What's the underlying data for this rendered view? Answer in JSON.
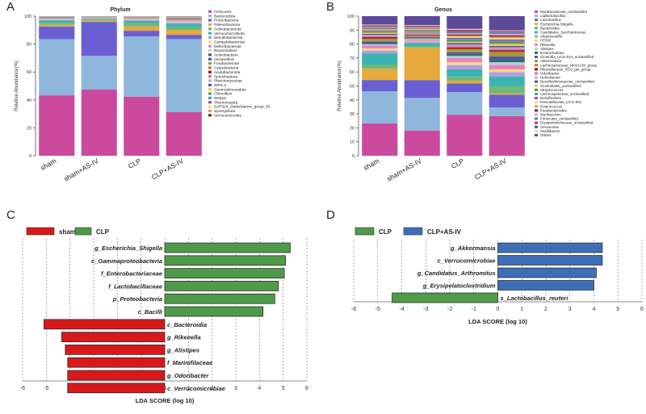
{
  "panels": {
    "a": "A",
    "b": "B",
    "c": "C",
    "d": "D"
  },
  "chart_data": [
    {
      "type": "bar",
      "stacked": true,
      "title": "Phylum",
      "ylabel": "Relative Abundance(%)",
      "xlabel": "",
      "ylim": [
        0,
        100
      ],
      "yticks": [
        0,
        20,
        40,
        60,
        80,
        100
      ],
      "categories": [
        "sham",
        "sham+AS-IV",
        "CLP",
        "CLP+AS-IV"
      ],
      "series": [
        {
          "name": "Firmicutes",
          "color": "#cc4a9e",
          "values": [
            43,
            47,
            42,
            31
          ]
        },
        {
          "name": "Bacteroidota",
          "color": "#8fb6dc",
          "values": [
            40,
            24,
            43,
            52
          ]
        },
        {
          "name": "Proteobacteria",
          "color": "#6a5fd2",
          "values": [
            9,
            24,
            4,
            3
          ]
        },
        {
          "name": "Patescibacteria",
          "color": "#e6a93c",
          "values": [
            1.2,
            0.8,
            3,
            3.5
          ]
        },
        {
          "name": "Actinobacteriota",
          "color": "#6fb97a",
          "values": [
            1.5,
            0.8,
            2.5,
            2
          ]
        },
        {
          "name": "Verrucomicrobiota",
          "color": "#3bb3b0",
          "values": [
            1.5,
            0.5,
            1.5,
            2.5
          ]
        },
        {
          "name": "Desulfobacterota",
          "color": "#b59be0",
          "values": [
            0.6,
            0.4,
            0.8,
            0.8
          ]
        },
        {
          "name": "Campylobacterota",
          "color": "#f0d98a",
          "values": [
            0.4,
            0.2,
            0.5,
            0.6
          ]
        },
        {
          "name": "Deferribacterota",
          "color": "#e884b8",
          "values": [
            0.3,
            0.2,
            0.3,
            0.7
          ]
        },
        {
          "name": "Bacteroidetes",
          "color": "#b7c9e8",
          "values": [
            0.3,
            0.2,
            0.3,
            0.5
          ]
        },
        {
          "name": "Actinobacteria",
          "color": "#2e6f5b",
          "values": [
            0.2,
            0.1,
            0.2,
            0.3
          ]
        },
        {
          "name": "unclassified",
          "color": "#5a4bb5",
          "values": [
            0.2,
            0.1,
            0.2,
            0.3
          ]
        },
        {
          "name": "Fusobacteriota",
          "color": "#8ea43a",
          "values": [
            0.1,
            0.1,
            0.1,
            0.3
          ]
        },
        {
          "name": "Cyanobacteria",
          "color": "#d07b3a",
          "values": [
            0.1,
            0.1,
            0.1,
            0.3
          ]
        },
        {
          "name": "Acidobacteriota",
          "color": "#7a1f1f",
          "values": [
            0.1,
            0.1,
            0.1,
            0.2
          ]
        },
        {
          "name": "Spirochaetota",
          "color": "#e070a0",
          "values": [
            0.1,
            0.05,
            0.1,
            0.2
          ]
        },
        {
          "name": "Planctomycetota",
          "color": "#c6a7c8",
          "values": [
            0.1,
            0.05,
            0.1,
            0.2
          ]
        },
        {
          "name": "WPS-2",
          "color": "#4c5aa8",
          "values": [
            0.1,
            0.05,
            0.1,
            0.2
          ]
        },
        {
          "name": "Gemmatimonadota",
          "color": "#f4c35a",
          "values": [
            0.1,
            0.05,
            0.1,
            0.1
          ]
        },
        {
          "name": "Chloroflexi",
          "color": "#5a9a4a",
          "values": [
            0.1,
            0.05,
            0.1,
            0.1
          ]
        },
        {
          "name": "NKB15",
          "color": "#4aa3a0",
          "values": [
            0.1,
            0.05,
            0.1,
            0.1
          ]
        },
        {
          "name": "Thermotogota",
          "color": "#9c4bb5",
          "values": [
            0.1,
            0.05,
            0.05,
            0.1
          ]
        },
        {
          "name": "SAR324_clade(Marine_group_B)",
          "color": "#efe07a",
          "values": [
            0.05,
            0.05,
            0.05,
            0.1
          ]
        },
        {
          "name": "Synergistota",
          "color": "#d99a6c",
          "values": [
            0.05,
            0.05,
            0.05,
            0.1
          ]
        },
        {
          "name": "Verrucomicrobia",
          "color": "#6b3a1e",
          "values": [
            0.05,
            0.05,
            0.05,
            0.1
          ]
        }
      ]
    },
    {
      "type": "bar",
      "stacked": true,
      "title": "Genus",
      "ylabel": "Relative Abundance(%)",
      "xlabel": "",
      "ylim": [
        0,
        100
      ],
      "yticks": [
        0,
        10,
        20,
        30,
        40,
        50,
        60,
        70,
        80,
        90,
        100
      ],
      "categories": [
        "sham",
        "sham+AS-IV",
        "CLP",
        "CLP+AS-IV"
      ],
      "series": [
        {
          "name": "Muribaculaceae_unclassified",
          "color": "#cc4a9e",
          "values": [
            23,
            17,
            29,
            28
          ]
        },
        {
          "name": "Ligilactobacillus",
          "color": "#8fb6dc",
          "values": [
            23,
            22,
            16,
            6
          ]
        },
        {
          "name": "Lactobacillus",
          "color": "#6a5fd2",
          "values": [
            8,
            12,
            6,
            9
          ]
        },
        {
          "name": "Escherichia-Shigella",
          "color": "#e6a93c",
          "values": [
            8,
            22,
            2,
            1
          ]
        },
        {
          "name": "Bacteroides",
          "color": "#6fb97a",
          "values": [
            3,
            1,
            3,
            5
          ]
        },
        {
          "name": "Candidatus_Saccharimonas",
          "color": "#3bb3b0",
          "values": [
            8,
            2,
            5,
            7
          ]
        },
        {
          "name": "Alloprevotella",
          "color": "#b59be0",
          "values": [
            2,
            1,
            3,
            3
          ]
        },
        {
          "name": "HT002",
          "color": "#f0d98a",
          "values": [
            1.5,
            0.5,
            2,
            2
          ]
        },
        {
          "name": "Rikenella",
          "color": "#e884b8",
          "values": [
            2,
            1,
            3,
            3
          ]
        },
        {
          "name": "Alistipes",
          "color": "#b7c9e8",
          "values": [
            1,
            0.5,
            1.5,
            2
          ]
        },
        {
          "name": "Enterorhabdus",
          "color": "#2e6f5b",
          "values": [
            1,
            0.5,
            1.5,
            2
          ]
        },
        {
          "name": "Clostridia_UCG-014_unclassified",
          "color": "#5a4bb5",
          "values": [
            1,
            0.5,
            1,
            2
          ]
        },
        {
          "name": "Akkermansia",
          "color": "#8ea43a",
          "values": [
            1,
            0.5,
            1.5,
            2
          ]
        },
        {
          "name": "Lachnospiraceae_NK4A136_group",
          "color": "#d07b3a",
          "values": [
            1,
            0.5,
            1,
            1.5
          ]
        },
        {
          "name": "Rikenellaceae_RC9_gut_group",
          "color": "#7a1f1f",
          "values": [
            1,
            0.5,
            1,
            1
          ]
        },
        {
          "name": "Odoribacter",
          "color": "#e070a0",
          "values": [
            0.8,
            0.5,
            1,
            1
          ]
        },
        {
          "name": "Helicobacter",
          "color": "#c6a7c8",
          "values": [
            0.8,
            0.5,
            1,
            1
          ]
        },
        {
          "name": "Desulfovibrionaceae_unclassified",
          "color": "#4c5aa8",
          "values": [
            0.8,
            0.5,
            1,
            1
          ]
        },
        {
          "name": "Clostridiales_unclassified",
          "color": "#f4c35a",
          "values": [
            0.8,
            0.5,
            1,
            1.5
          ]
        },
        {
          "name": "Streptococcus",
          "color": "#5a9a4a",
          "values": [
            0.6,
            0.5,
            1,
            1
          ]
        },
        {
          "name": "Lachnospiraceae_unclassified",
          "color": "#4aa3a0",
          "values": [
            0.6,
            0.5,
            1,
            1
          ]
        },
        {
          "name": "Desulfovibrio",
          "color": "#9c4bb5",
          "values": [
            0.6,
            0.4,
            0.8,
            1
          ]
        },
        {
          "name": "Prevotellaceae_UCG-001",
          "color": "#efe07a",
          "values": [
            0.5,
            0.4,
            0.8,
            1
          ]
        },
        {
          "name": "Enterococcus",
          "color": "#d99a6c",
          "values": [
            0.5,
            0.4,
            0.8,
            1
          ]
        },
        {
          "name": "Parabacteroides",
          "color": "#6b3a1e",
          "values": [
            0.5,
            0.4,
            0.8,
            1
          ]
        },
        {
          "name": "Muribaculum",
          "color": "#e79cc6",
          "values": [
            0.5,
            0.4,
            0.8,
            1
          ]
        },
        {
          "name": "Firmicutes_unclassified",
          "color": "#4b86c6",
          "values": [
            0.5,
            0.4,
            0.8,
            1
          ]
        },
        {
          "name": "Erysipelotrichaceae_unclassified",
          "color": "#cf3d3d",
          "values": [
            0.5,
            0.4,
            0.8,
            0.5
          ]
        },
        {
          "name": "Aeromonas",
          "color": "#5e4bb0",
          "values": [
            0.5,
            0.4,
            0.8,
            0.5
          ]
        },
        {
          "name": "Oscillibacter",
          "color": "#f2d79c",
          "values": [
            0.5,
            0.4,
            0.7,
            0.5
          ]
        },
        {
          "name": "Others",
          "color": "#5b4a9a",
          "values": [
            6,
            6,
            9,
            10
          ]
        }
      ]
    },
    {
      "type": "bar",
      "orientation": "horizontal",
      "title": "",
      "xlabel": "LDA SCORE (log 10)",
      "ylabel": "",
      "xlim": [
        -6,
        6
      ],
      "xticks": [
        -6,
        -5,
        -4,
        -3,
        -2,
        -1,
        0,
        1,
        2,
        3,
        4,
        5,
        6
      ],
      "legend": [
        {
          "name": "sham",
          "color": "#d7191c"
        },
        {
          "name": "CLP",
          "color": "#4f9a48"
        }
      ],
      "bars": [
        {
          "label": "g_Escherichia_Shigella",
          "value": 5.3,
          "group": "CLP"
        },
        {
          "label": "c_Gammaproteobacteria",
          "value": 5.1,
          "group": "CLP"
        },
        {
          "label": "f_Enterobacteriaceae",
          "value": 5.05,
          "group": "CLP"
        },
        {
          "label": "f_Lactobacillaceae",
          "value": 4.8,
          "group": "CLP"
        },
        {
          "label": "p_Proteobacteria",
          "value": 4.65,
          "group": "CLP"
        },
        {
          "label": "c_Bacilli",
          "value": 4.15,
          "group": "CLP"
        },
        {
          "label": "c_Bacteroidia",
          "value": -5.1,
          "group": "sham"
        },
        {
          "label": "g_Rikenella",
          "value": -4.35,
          "group": "sham"
        },
        {
          "label": "g_Alistipes",
          "value": -4.2,
          "group": "sham"
        },
        {
          "label": "f_Marinifilaceae",
          "value": -4.1,
          "group": "sham"
        },
        {
          "label": "g_Odoribacter",
          "value": -4.1,
          "group": "sham"
        },
        {
          "label": "c_Verrucomicrobiae",
          "value": -4.1,
          "group": "sham"
        }
      ]
    },
    {
      "type": "bar",
      "orientation": "horizontal",
      "title": "",
      "xlabel": "LDA SCORE (log 10)",
      "ylabel": "",
      "xlim": [
        -6,
        6
      ],
      "xticks": [
        -6,
        -5,
        -4,
        -3,
        -2,
        -1,
        0,
        1,
        2,
        3,
        4,
        5,
        6
      ],
      "legend": [
        {
          "name": "CLP",
          "color": "#4f9a48"
        },
        {
          "name": "CLP+AS-IV",
          "color": "#3d6fb8"
        }
      ],
      "bars": [
        {
          "label": "g_Akkermansia",
          "value": 4.35,
          "group": "CLP+AS-IV"
        },
        {
          "label": "c_Verrucomicrobiae",
          "value": 4.35,
          "group": "CLP+AS-IV"
        },
        {
          "label": "g_Candidatus_Arthromitus",
          "value": 4.1,
          "group": "CLP+AS-IV"
        },
        {
          "label": "g_Erysipelatoclostridium",
          "value": 4.0,
          "group": "CLP+AS-IV"
        },
        {
          "label": "s_Lactobacillus_reuteri",
          "value": -4.4,
          "group": "CLP"
        }
      ]
    }
  ]
}
